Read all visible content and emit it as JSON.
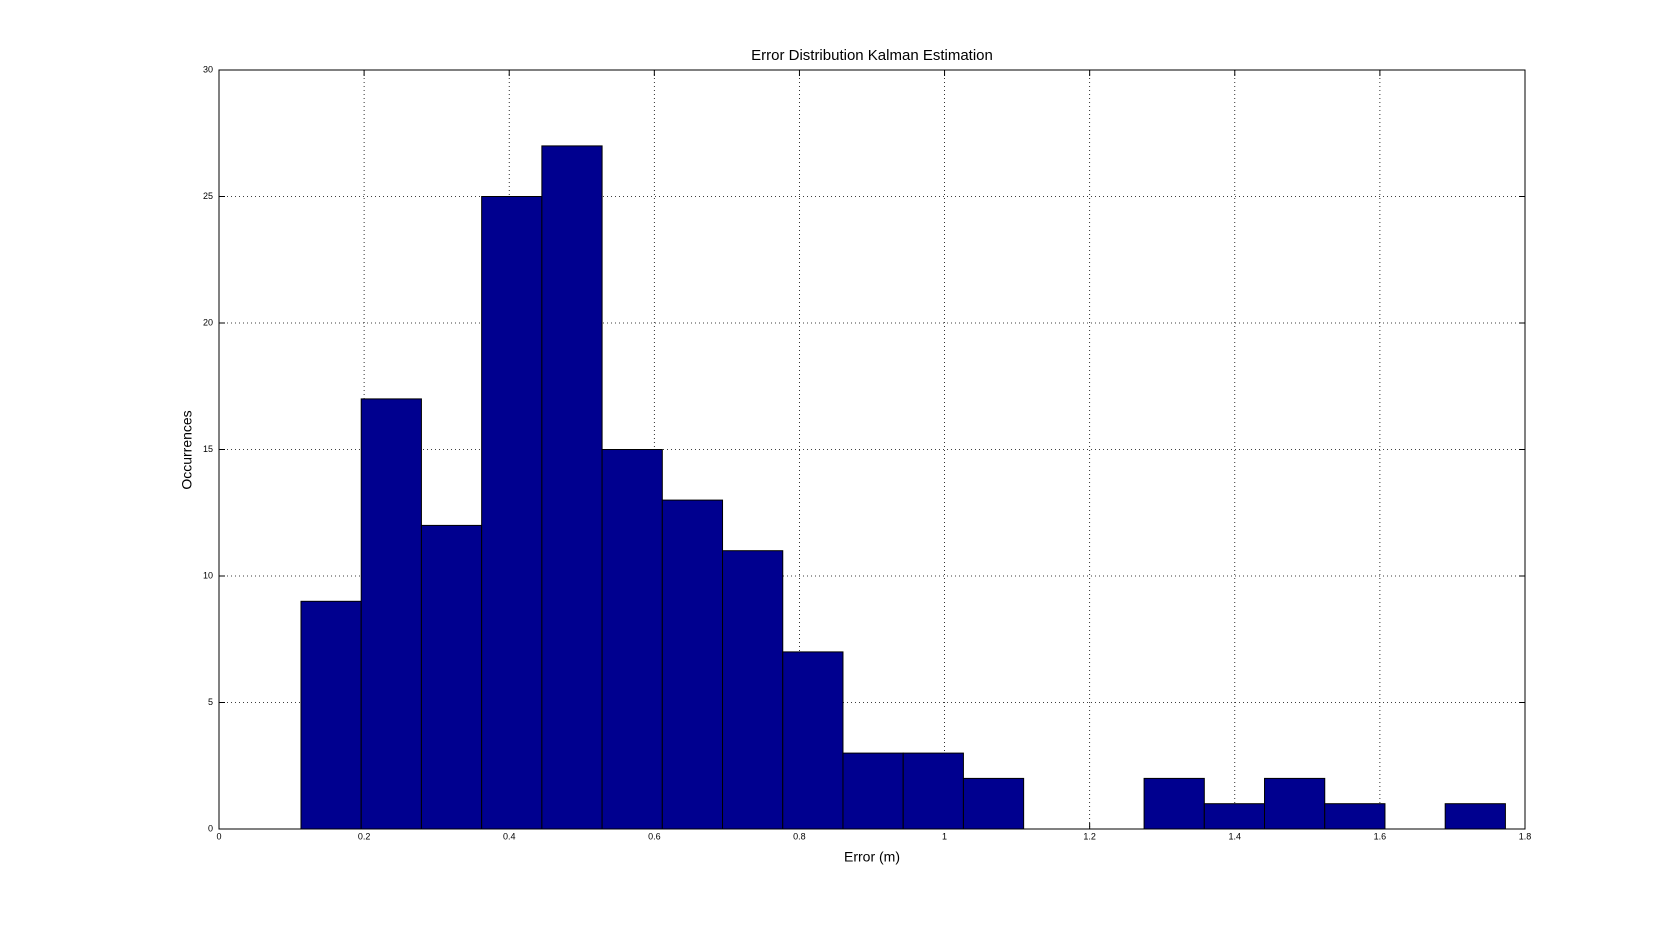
{
  "chart_data": {
    "type": "histogram",
    "title": "Error Distribution Kalman Estimation",
    "xlabel": "Error (m)",
    "ylabel": "Occurrences",
    "bins": [
      0.113,
      0.196,
      0.279,
      0.362,
      0.445,
      0.528,
      0.611,
      0.694,
      0.777,
      0.86,
      0.943,
      1.026,
      1.109,
      1.192,
      1.275,
      1.358,
      1.441,
      1.524,
      1.607,
      1.69,
      1.773
    ],
    "values": [
      9,
      17,
      12,
      25,
      27,
      15,
      13,
      11,
      7,
      3,
      3,
      2,
      0,
      0,
      2,
      1,
      2,
      1,
      0,
      1
    ],
    "color": "#00008f",
    "xlim": [
      0,
      1.8
    ],
    "xticks": [
      0,
      0.2,
      0.4,
      0.6,
      0.8,
      1,
      1.2,
      1.4,
      1.6,
      1.8
    ],
    "ylim": [
      0,
      30
    ],
    "yticks": [
      0,
      5,
      10,
      15,
      20,
      25,
      30
    ],
    "grid": true
  }
}
